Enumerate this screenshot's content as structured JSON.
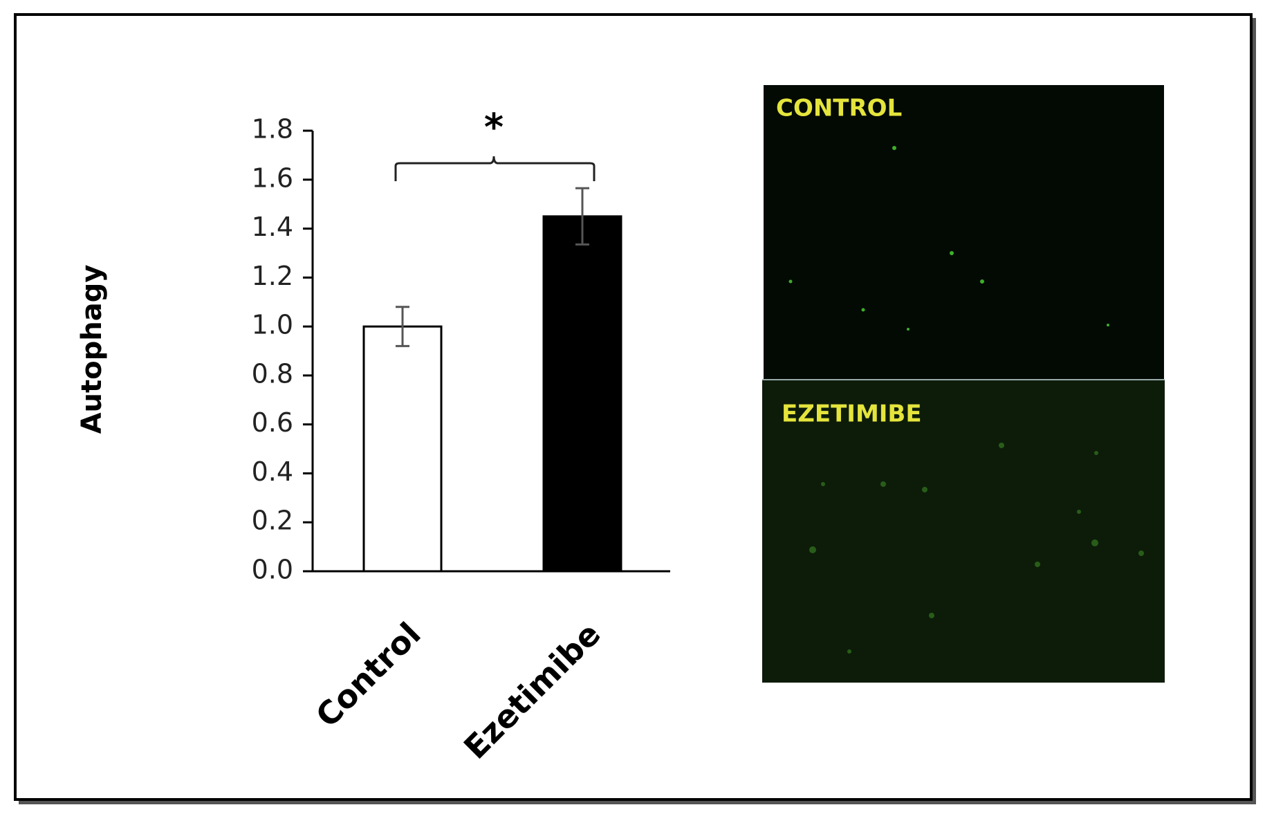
{
  "chart_data": {
    "type": "bar",
    "ylabel": "Autophagy",
    "categories": [
      "Control",
      "Ezetimibe"
    ],
    "values": [
      1.0,
      1.45
    ],
    "errors": [
      0.08,
      0.115
    ],
    "colors": [
      "#ffffff",
      "#000000"
    ],
    "ylim": [
      0,
      1.8
    ],
    "yticks": [
      {
        "value": 0,
        "label": "0.0"
      },
      0.2,
      0.4,
      0.6,
      0.8,
      {
        "value": 1,
        "label": "1.0"
      },
      1.2,
      1.4,
      1.6,
      1.8
    ],
    "annotation": "*"
  },
  "images": [
    {
      "label": "CONTROL"
    },
    {
      "label": "EZETIMIBE"
    }
  ]
}
